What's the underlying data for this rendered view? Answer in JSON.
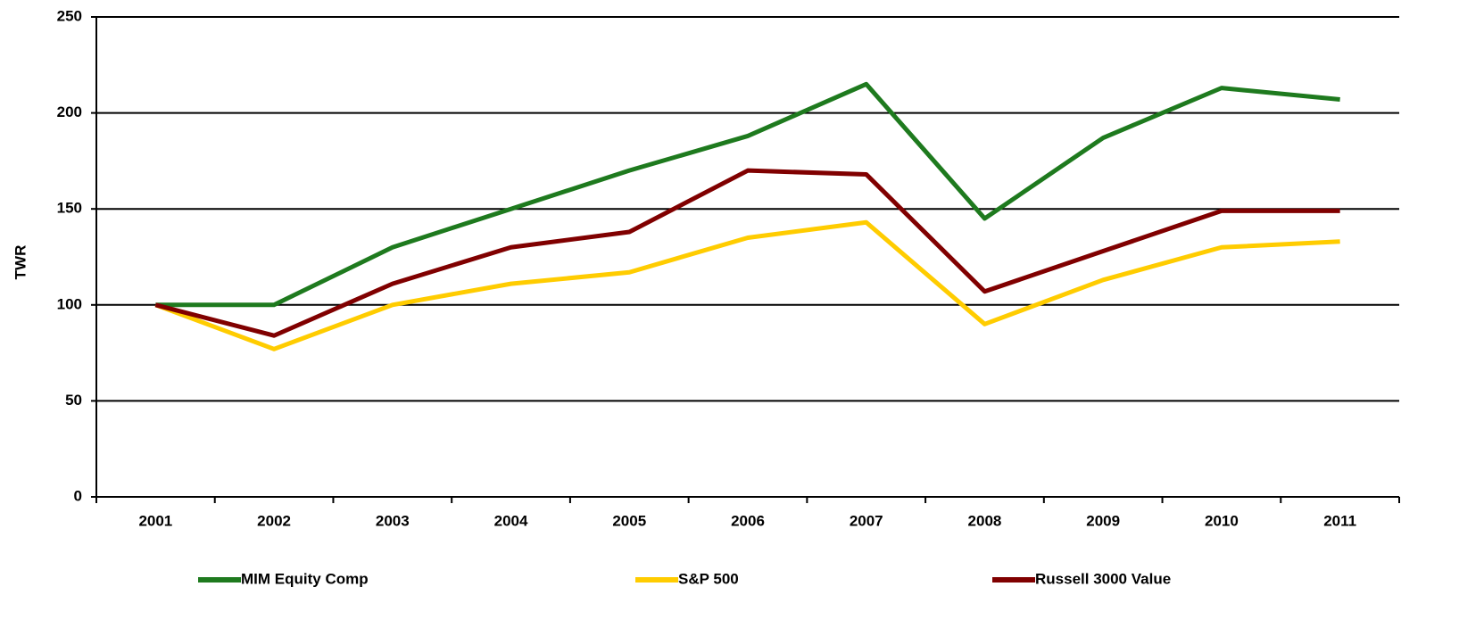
{
  "chart_data": {
    "type": "line",
    "y_label": "TWR",
    "categories": [
      "2001",
      "2002",
      "2003",
      "2004",
      "2005",
      "2006",
      "2007",
      "2008",
      "2009",
      "2010",
      "2011"
    ],
    "series": [
      {
        "name": "MIM Equity Comp",
        "color": "#1e7a1e",
        "values": [
          100,
          100,
          130,
          150,
          170,
          188,
          215,
          145,
          187,
          213,
          207
        ]
      },
      {
        "name": "S&P 500",
        "color": "#ffcc00",
        "values": [
          100,
          77,
          100,
          111,
          117,
          135,
          143,
          90,
          113,
          130,
          133
        ]
      },
      {
        "name": "Russell 3000 Value",
        "color": "#800000",
        "values": [
          100,
          84,
          111,
          130,
          138,
          170,
          168,
          107,
          128,
          149,
          149
        ]
      }
    ],
    "ylim": [
      0,
      250
    ],
    "yticks": [
      0,
      50,
      100,
      150,
      200,
      250
    ],
    "grid": true
  }
}
